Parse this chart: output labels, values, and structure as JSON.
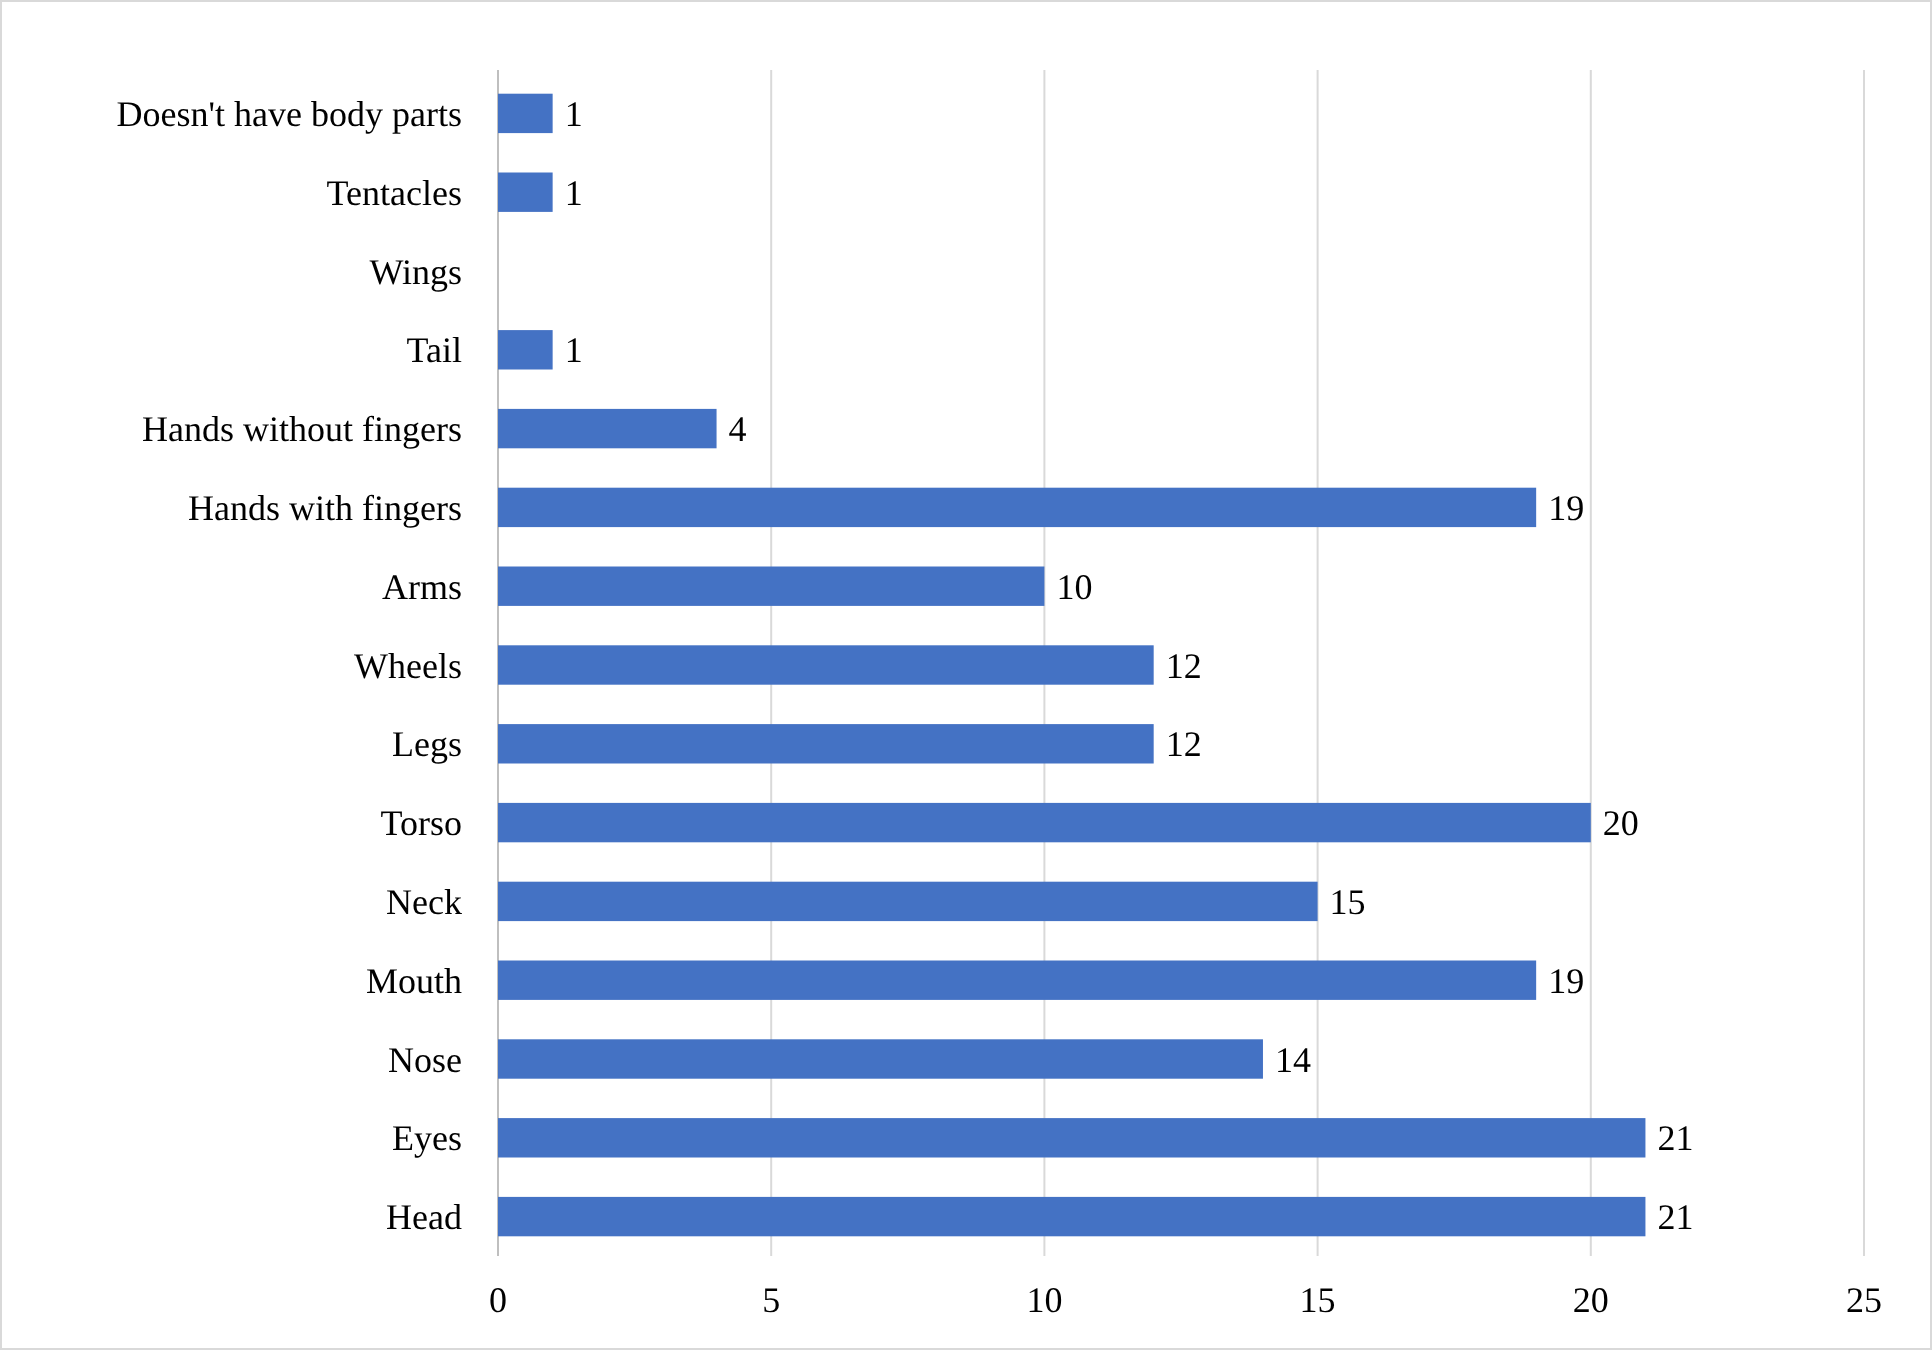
{
  "chart_data": {
    "type": "bar",
    "orientation": "horizontal",
    "categories": [
      "Doesn't have body parts",
      "Tentacles",
      "Wings",
      "Tail",
      "Hands without fingers",
      "Hands with fingers",
      "Arms",
      "Wheels",
      "Legs",
      "Torso",
      "Neck",
      "Mouth",
      "Nose",
      "Eyes",
      "Head"
    ],
    "values": [
      1,
      1,
      null,
      1,
      4,
      19,
      10,
      12,
      12,
      20,
      15,
      19,
      14,
      21,
      21
    ],
    "color": "#4472c4",
    "value_labels": [
      "1",
      "1",
      null,
      "1",
      "4",
      "19",
      "10",
      "12",
      "12",
      "20",
      "15",
      "19",
      "14",
      "21",
      "21"
    ],
    "xlim": [
      0,
      25
    ],
    "xticks": [
      0,
      5,
      10,
      15,
      20,
      25
    ],
    "grid": "x"
  }
}
